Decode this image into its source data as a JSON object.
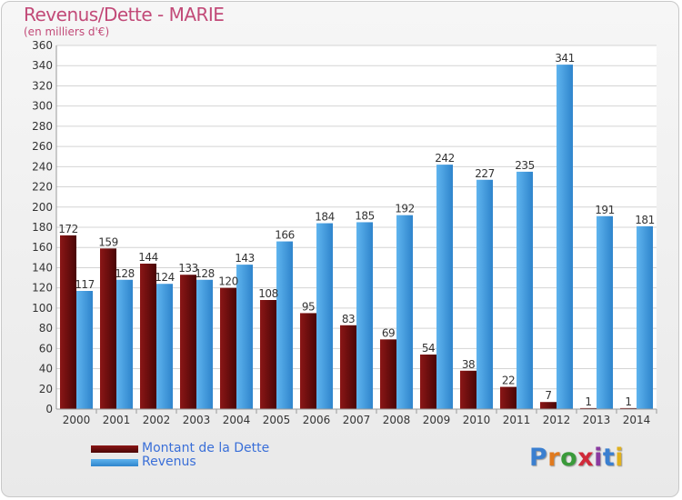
{
  "title": "Revenus/Dette - MARIE",
  "subtitle": "(en milliers d'€)",
  "logo": {
    "text": "Proxiti",
    "colors": [
      "#3a7fd0",
      "#e07a1e",
      "#3a9a3a",
      "#d02a3a",
      "#8a3aa0",
      "#3a7fd0",
      "#e0b01e"
    ]
  },
  "colors": {
    "dette": "#7a1010",
    "revenus": "#4aa3e3",
    "axis_text": "#333333",
    "grid": "#d4d4d4"
  },
  "chart_data": {
    "type": "bar",
    "categories": [
      "2000",
      "2001",
      "2002",
      "2003",
      "2004",
      "2005",
      "2006",
      "2007",
      "2008",
      "2009",
      "2010",
      "2011",
      "2012",
      "2013",
      "2014"
    ],
    "series": [
      {
        "name": "Montant de la Dette",
        "values": [
          172,
          159,
          144,
          133,
          120,
          108,
          95,
          83,
          69,
          54,
          38,
          22,
          7,
          1,
          1
        ]
      },
      {
        "name": "Revenus",
        "values": [
          117,
          128,
          124,
          128,
          143,
          166,
          184,
          185,
          192,
          242,
          227,
          235,
          341,
          191,
          181
        ]
      }
    ],
    "ylim": [
      0,
      360
    ],
    "yticks": [
      0,
      20,
      40,
      60,
      80,
      100,
      120,
      140,
      160,
      180,
      200,
      220,
      240,
      260,
      280,
      300,
      320,
      340,
      360
    ],
    "grid": true,
    "legend_position": "bottom-left"
  }
}
